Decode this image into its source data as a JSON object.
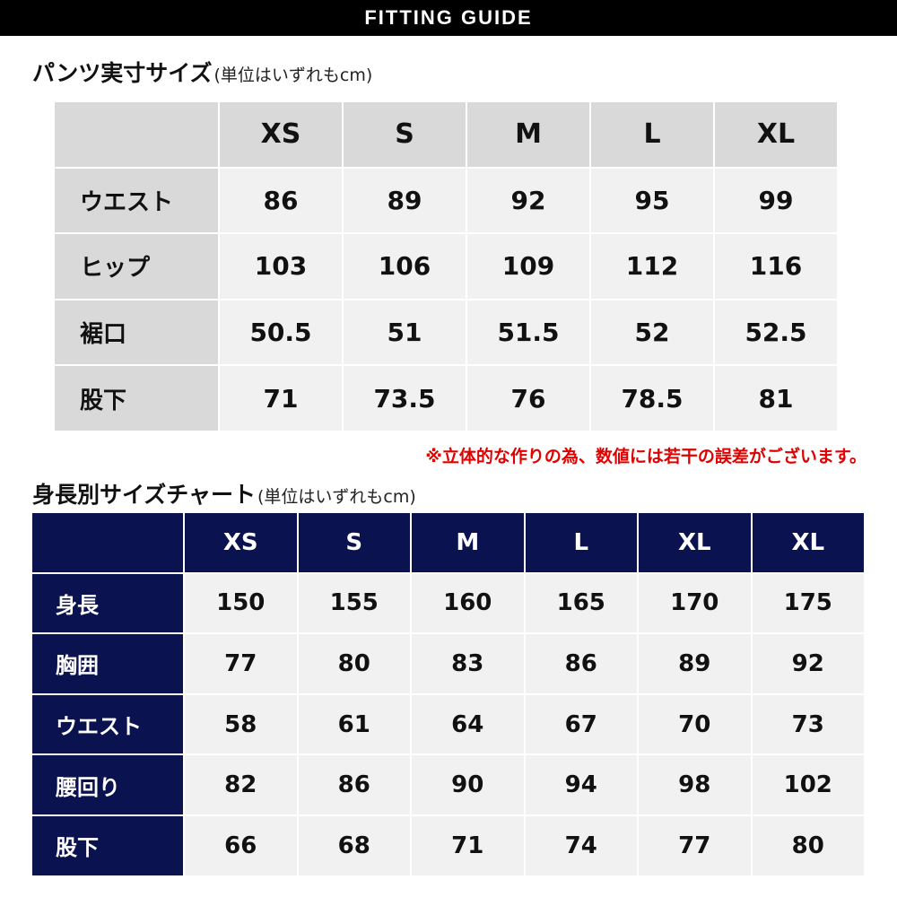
{
  "banner": {
    "title": "FITTING GUIDE"
  },
  "pants_section": {
    "title": "パンツ実寸サイズ",
    "unit": "(単位はいずれもcm)",
    "columns": [
      "XS",
      "S",
      "M",
      "L",
      "XL"
    ],
    "rows": [
      {
        "label": "ウエスト",
        "values": [
          "86",
          "89",
          "92",
          "95",
          "99"
        ]
      },
      {
        "label": "ヒップ",
        "values": [
          "103",
          "106",
          "109",
          "112",
          "116"
        ]
      },
      {
        "label": "裾口",
        "values": [
          "50.5",
          "51",
          "51.5",
          "52",
          "52.5"
        ]
      },
      {
        "label": "股下",
        "values": [
          "71",
          "73.5",
          "76",
          "78.5",
          "81"
        ]
      }
    ],
    "note": "※立体的な作りの為、数値には若干の誤差がございます。"
  },
  "height_section": {
    "title": "身長別サイズチャート",
    "unit": "(単位はいずれもcm)",
    "columns": [
      "XS",
      "S",
      "M",
      "L",
      "XL",
      "XL"
    ],
    "rows": [
      {
        "label": "身長",
        "values": [
          "150",
          "155",
          "160",
          "165",
          "170",
          "175"
        ]
      },
      {
        "label": "胸囲",
        "values": [
          "77",
          "80",
          "83",
          "86",
          "89",
          "92"
        ]
      },
      {
        "label": "ウエスト",
        "values": [
          "58",
          "61",
          "64",
          "67",
          "70",
          "73"
        ]
      },
      {
        "label": "腰回り",
        "values": [
          "82",
          "86",
          "90",
          "94",
          "98",
          "102"
        ]
      },
      {
        "label": "股下",
        "values": [
          "66",
          "68",
          "71",
          "74",
          "77",
          "80"
        ]
      }
    ]
  },
  "colors": {
    "navy": "#0a1250",
    "note_red": "#e00000",
    "header_gray": "#d9d9d9",
    "cell_gray": "#f1f1f1"
  }
}
